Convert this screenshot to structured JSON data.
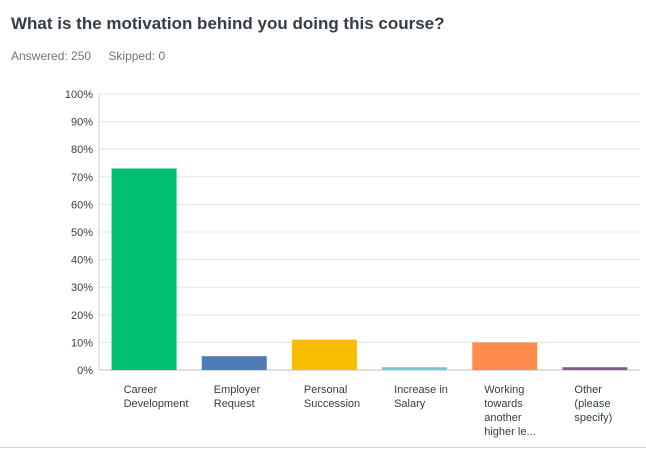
{
  "question": {
    "title": "What is the motivation behind you doing this course?",
    "answered": "Answered: 250",
    "skipped": "Skipped: 0"
  },
  "chart_data": {
    "type": "bar",
    "categories": [
      [
        "Career",
        "Development"
      ],
      [
        "Employer",
        "Request"
      ],
      [
        "Personal",
        "Succession"
      ],
      [
        "Increase in",
        "Salary"
      ],
      [
        "Working",
        "towards",
        "another",
        "higher le..."
      ],
      [
        "Other",
        "(please",
        "specify)"
      ]
    ],
    "values": [
      73,
      5,
      11,
      1,
      10,
      1
    ],
    "colors": [
      "#00bf6f",
      "#507cb6",
      "#f9be00",
      "#6bc8cd",
      "#ff8b4f",
      "#7d5e90"
    ],
    "yticks": [
      "0%",
      "10%",
      "20%",
      "30%",
      "40%",
      "50%",
      "60%",
      "70%",
      "80%",
      "90%",
      "100%"
    ],
    "ylim": [
      0,
      100
    ],
    "grid": true,
    "title": "",
    "xlabel": "",
    "ylabel": ""
  }
}
